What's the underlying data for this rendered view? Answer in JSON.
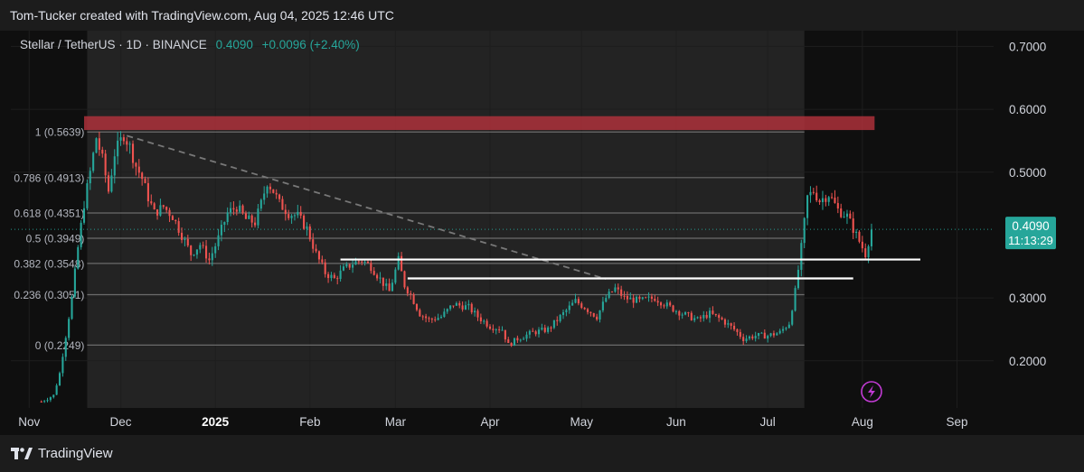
{
  "header": {
    "attribution": "Tom-Tucker created with TradingView.com, Aug 04, 2025 12:46 UTC"
  },
  "legend": {
    "symbol": "Stellar / TetherUS · 1D · BINANCE",
    "last": "0.4090",
    "change": "+0.0096 (+2.40%)"
  },
  "price_tag": {
    "price": "0.4090",
    "countdown": "11:13:29"
  },
  "footer": {
    "brand": "TradingView"
  },
  "colors": {
    "background": "#0f0f0f",
    "up": "#26a69a",
    "down": "#ef5350",
    "resistance_zone": "#b2323c",
    "fib_line": "#6b6b6b",
    "trendline": "#787878",
    "support_line": "#ffffff",
    "accent_icon": "#c23bd4"
  },
  "chart_data": {
    "type": "candlestick",
    "symbol": "Stellar / TetherUS",
    "interval": "1D",
    "exchange": "BINANCE",
    "y_axis": {
      "side": "right",
      "ticks": [
        "0.7000",
        "0.6000",
        "0.5000",
        "0.3000",
        "0.2000"
      ],
      "range": [
        0.125,
        0.725
      ]
    },
    "x_axis": {
      "range": [
        "2024-10-26",
        "2025-09-13"
      ],
      "ticks": [
        {
          "label": "Nov",
          "date": "2024-11-01"
        },
        {
          "label": "Dec",
          "date": "2024-12-01"
        },
        {
          "label": "2025",
          "date": "2025-01-01"
        },
        {
          "label": "Feb",
          "date": "2025-02-01"
        },
        {
          "label": "Mar",
          "date": "2025-03-01"
        },
        {
          "label": "Apr",
          "date": "2025-04-01"
        },
        {
          "label": "May",
          "date": "2025-05-01"
        },
        {
          "label": "Jun",
          "date": "2025-06-01"
        },
        {
          "label": "Jul",
          "date": "2025-07-01"
        },
        {
          "label": "Aug",
          "date": "2025-08-01"
        },
        {
          "label": "Sep",
          "date": "2025-09-01"
        }
      ]
    },
    "shaded_range": {
      "from": "2024-11-20",
      "to": "2025-07-13"
    },
    "fib_levels": [
      {
        "label": "1 (0.5639)",
        "price": 0.5639
      },
      {
        "label": "0.786 (0.4913)",
        "price": 0.4913
      },
      {
        "label": "0.618 (0.4351)",
        "price": 0.4351
      },
      {
        "label": "0.5 (0.3949)",
        "price": 0.3949
      },
      {
        "label": "0.382 (0.3548)",
        "price": 0.3548
      },
      {
        "label": "0.236 (0.3051)",
        "price": 0.3051
      },
      {
        "label": "0 (0.2249)",
        "price": 0.2249
      }
    ],
    "fib_range": {
      "from": "2024-11-20",
      "to": "2025-07-13"
    },
    "resistance_zone": {
      "from": "2024-11-19",
      "to": "2025-08-05",
      "low": 0.567,
      "high": 0.589
    },
    "trendline": {
      "from": {
        "date": "2024-12-03",
        "price": 0.558
      },
      "to": {
        "date": "2025-05-09",
        "price": 0.33
      }
    },
    "support_lines": [
      {
        "from": "2025-02-11",
        "to": "2025-08-20",
        "price": 0.361
      },
      {
        "from": "2025-03-05",
        "to": "2025-07-29",
        "price": 0.331
      }
    ],
    "price_line": 0.409,
    "anchors": [
      [
        "2024-11-05",
        0.135
      ],
      [
        "2024-11-09",
        0.145
      ],
      [
        "2024-11-11",
        0.18
      ],
      [
        "2024-11-13",
        0.24
      ],
      [
        "2024-11-15",
        0.3
      ],
      [
        "2024-11-17",
        0.38
      ],
      [
        "2024-11-19",
        0.45
      ],
      [
        "2024-11-21",
        0.5
      ],
      [
        "2024-11-23",
        0.555
      ],
      [
        "2024-11-25",
        0.52
      ],
      [
        "2024-11-27",
        0.47
      ],
      [
        "2024-11-29",
        0.53
      ],
      [
        "2024-12-02",
        0.56
      ],
      [
        "2024-12-04",
        0.54
      ],
      [
        "2024-12-06",
        0.51
      ],
      [
        "2024-12-08",
        0.49
      ],
      [
        "2024-12-10",
        0.46
      ],
      [
        "2024-12-12",
        0.435
      ],
      [
        "2024-12-15",
        0.445
      ],
      [
        "2024-12-18",
        0.43
      ],
      [
        "2024-12-21",
        0.4
      ],
      [
        "2024-12-24",
        0.37
      ],
      [
        "2024-12-27",
        0.385
      ],
      [
        "2024-12-30",
        0.36
      ],
      [
        "2025-01-02",
        0.395
      ],
      [
        "2025-01-05",
        0.435
      ],
      [
        "2025-01-08",
        0.445
      ],
      [
        "2025-01-11",
        0.425
      ],
      [
        "2025-01-14",
        0.42
      ],
      [
        "2025-01-16",
        0.45
      ],
      [
        "2025-01-18",
        0.485
      ],
      [
        "2025-01-20",
        0.47
      ],
      [
        "2025-01-22",
        0.45
      ],
      [
        "2025-01-25",
        0.435
      ],
      [
        "2025-01-28",
        0.43
      ],
      [
        "2025-01-31",
        0.41
      ],
      [
        "2025-02-03",
        0.37
      ],
      [
        "2025-02-06",
        0.34
      ],
      [
        "2025-02-09",
        0.33
      ],
      [
        "2025-02-12",
        0.345
      ],
      [
        "2025-02-15",
        0.355
      ],
      [
        "2025-02-18",
        0.36
      ],
      [
        "2025-02-21",
        0.35
      ],
      [
        "2025-02-24",
        0.33
      ],
      [
        "2025-02-27",
        0.31
      ],
      [
        "2025-03-02",
        0.36
      ],
      [
        "2025-03-04",
        0.32
      ],
      [
        "2025-03-06",
        0.305
      ],
      [
        "2025-03-09",
        0.275
      ],
      [
        "2025-03-12",
        0.265
      ],
      [
        "2025-03-16",
        0.27
      ],
      [
        "2025-03-20",
        0.29
      ],
      [
        "2025-03-25",
        0.285
      ],
      [
        "2025-03-28",
        0.27
      ],
      [
        "2025-04-01",
        0.255
      ],
      [
        "2025-04-05",
        0.25
      ],
      [
        "2025-04-07",
        0.225
      ],
      [
        "2025-04-10",
        0.235
      ],
      [
        "2025-04-15",
        0.245
      ],
      [
        "2025-04-20",
        0.25
      ],
      [
        "2025-04-25",
        0.275
      ],
      [
        "2025-04-29",
        0.295
      ],
      [
        "2025-05-02",
        0.285
      ],
      [
        "2025-05-06",
        0.27
      ],
      [
        "2025-05-09",
        0.3
      ],
      [
        "2025-05-12",
        0.315
      ],
      [
        "2025-05-15",
        0.3
      ],
      [
        "2025-05-20",
        0.295
      ],
      [
        "2025-05-25",
        0.3
      ],
      [
        "2025-05-30",
        0.285
      ],
      [
        "2025-06-03",
        0.275
      ],
      [
        "2025-06-08",
        0.265
      ],
      [
        "2025-06-12",
        0.275
      ],
      [
        "2025-06-16",
        0.265
      ],
      [
        "2025-06-20",
        0.25
      ],
      [
        "2025-06-23",
        0.235
      ],
      [
        "2025-06-27",
        0.24
      ],
      [
        "2025-07-01",
        0.24
      ],
      [
        "2025-07-05",
        0.245
      ],
      [
        "2025-07-08",
        0.26
      ],
      [
        "2025-07-10",
        0.31
      ],
      [
        "2025-07-12",
        0.38
      ],
      [
        "2025-07-14",
        0.46
      ],
      [
        "2025-07-16",
        0.47
      ],
      [
        "2025-07-18",
        0.455
      ],
      [
        "2025-07-21",
        0.465
      ],
      [
        "2025-07-24",
        0.44
      ],
      [
        "2025-07-27",
        0.43
      ],
      [
        "2025-07-30",
        0.4
      ],
      [
        "2025-08-02",
        0.37
      ],
      [
        "2025-08-04",
        0.409
      ]
    ]
  }
}
